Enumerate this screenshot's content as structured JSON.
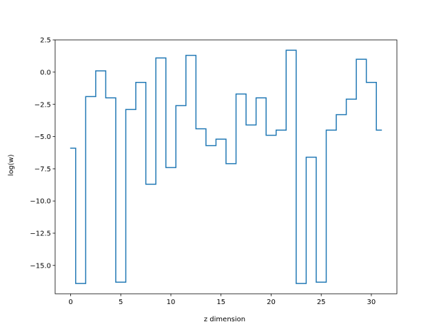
{
  "chart_data": {
    "type": "line",
    "drawstyle": "steps-mid",
    "title": "",
    "xlabel": "z dimension",
    "ylabel": "log(w)",
    "xlim": [
      -1.55,
      32.55
    ],
    "ylim": [
      -17.2,
      2.5
    ],
    "xticks": [
      0,
      5,
      10,
      15,
      20,
      25,
      30
    ],
    "xtick_labels": [
      "0",
      "5",
      "10",
      "15",
      "20",
      "25",
      "30"
    ],
    "yticks": [
      2.5,
      0.0,
      -2.5,
      -5.0,
      -7.5,
      -10.0,
      -12.5,
      -15.0
    ],
    "ytick_labels": [
      "2.5",
      "0.0",
      "−2.5",
      "−5.0",
      "−7.5",
      "−10.0",
      "−12.5",
      "−15.0"
    ],
    "grid": false,
    "legend": "none",
    "color": "#1f77b4",
    "x": [
      0,
      1,
      2,
      3,
      4,
      5,
      6,
      7,
      8,
      9,
      10,
      11,
      12,
      13,
      14,
      15,
      16,
      17,
      18,
      19,
      20,
      21,
      22,
      23,
      24,
      25,
      26,
      27,
      28,
      29,
      30,
      31
    ],
    "y": [
      -5.9,
      -16.4,
      -1.9,
      0.1,
      -2.0,
      -16.3,
      -2.9,
      -0.8,
      -8.7,
      1.1,
      -7.4,
      -2.6,
      1.3,
      -4.4,
      -5.7,
      -5.2,
      -7.1,
      -1.7,
      -4.1,
      -2.0,
      -4.9,
      -4.5,
      1.7,
      -16.4,
      -6.6,
      -16.3,
      -4.5,
      -3.3,
      -2.1,
      1.0,
      -0.8,
      -4.5
    ]
  }
}
